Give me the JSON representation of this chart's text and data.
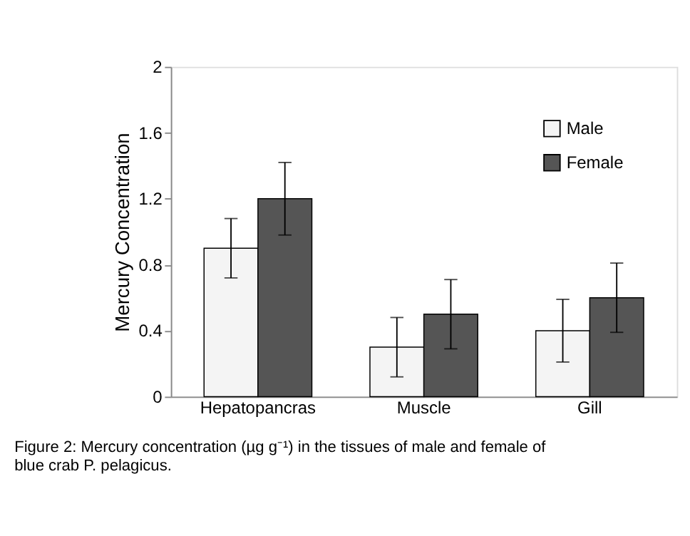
{
  "chart_data": {
    "type": "bar",
    "ylabel": "Mercury Concentration",
    "categories": [
      "Hepatopancras",
      "Muscle",
      "Gill"
    ],
    "series": [
      {
        "name": "Male",
        "color": "#f4f4f4",
        "values": [
          0.9,
          0.3,
          0.4
        ],
        "errors": [
          0.18,
          0.18,
          0.19
        ]
      },
      {
        "name": "Female",
        "color": "#555555",
        "values": [
          1.2,
          0.5,
          0.6
        ],
        "errors": [
          0.22,
          0.21,
          0.21
        ]
      }
    ],
    "ylim": [
      0,
      2
    ],
    "yticks": [
      0,
      0.4,
      0.8,
      1.2,
      1.6,
      2
    ],
    "grid": false,
    "legend": "top right",
    "annotations": [
      "Figure 2: Mercury concentration (µg g⁻¹) in the tissues of male and female of blue crab P. pelagicus."
    ]
  }
}
